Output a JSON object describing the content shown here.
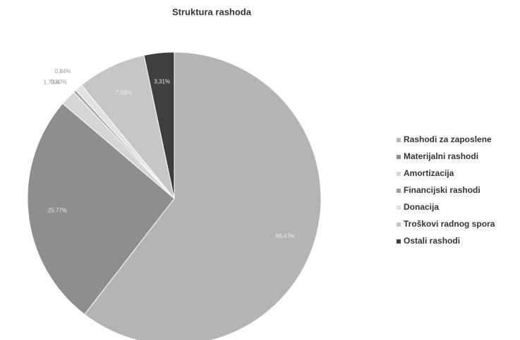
{
  "chart_data": {
    "type": "pie",
    "title": "Struktura rashoda",
    "categories": [
      "Rashodi za zaposlene",
      "Materijalni rashodi",
      "Amortizacija",
      "Financijski rashodi",
      "Donacija",
      "Troškovi radnog spora",
      "Ostali rashodi"
    ],
    "values": [
      60.47,
      25.77,
      1.73,
      0.3,
      0.84,
      7.58,
      3.31
    ],
    "value_labels": [
      "60,47%",
      "25,77%",
      "1,73%",
      "0,30%",
      "0,84%",
      "7,58%",
      "3,31%"
    ],
    "colors": [
      "#b4b4b4",
      "#8e8e8e",
      "#d6d6d6",
      "#a0a0a0",
      "#e2e2e2",
      "#c6c6c6",
      "#3e3e3e"
    ],
    "legend": "right"
  }
}
